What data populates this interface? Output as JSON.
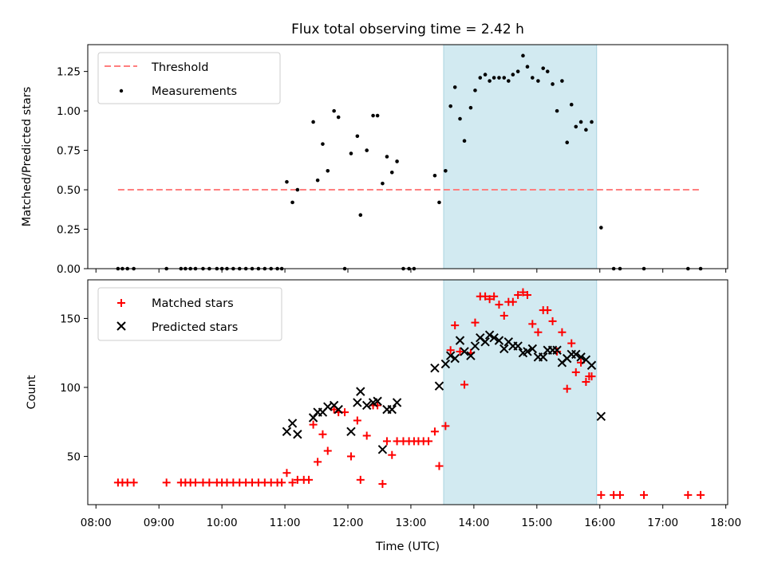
{
  "chart_data": [
    {
      "type": "scatter",
      "title": "Flux total observing time = 2.42 h",
      "xlabel": "",
      "ylabel": "Matched/Predicted stars",
      "xlim": [
        7.87,
        18.03
      ],
      "ylim": [
        0.0,
        1.42
      ],
      "yticks": [
        0.0,
        0.25,
        0.5,
        0.75,
        1.0,
        1.25
      ],
      "ytick_labels": [
        "0.00",
        "0.25",
        "0.50",
        "0.75",
        "1.00",
        "1.25"
      ],
      "shaded_x_range": [
        13.52,
        15.95
      ],
      "grid": false,
      "legend_position": "top-left",
      "threshold": {
        "name": "Threshold",
        "x": [
          8.35,
          17.6
        ],
        "y": 0.5,
        "color": "#ff7f7f"
      },
      "series": [
        {
          "name": "Measurements",
          "color": "#000000",
          "marker": "dot",
          "points": [
            [
              8.35,
              0
            ],
            [
              8.42,
              0
            ],
            [
              8.5,
              0
            ],
            [
              8.6,
              0
            ],
            [
              9.12,
              0
            ],
            [
              9.35,
              0
            ],
            [
              9.42,
              0
            ],
            [
              9.5,
              0
            ],
            [
              9.58,
              0
            ],
            [
              9.7,
              0
            ],
            [
              9.8,
              0
            ],
            [
              9.92,
              0
            ],
            [
              10.0,
              0
            ],
            [
              10.08,
              0
            ],
            [
              10.18,
              0
            ],
            [
              10.28,
              0
            ],
            [
              10.38,
              0
            ],
            [
              10.48,
              0
            ],
            [
              10.58,
              0
            ],
            [
              10.68,
              0
            ],
            [
              10.78,
              0
            ],
            [
              10.88,
              0
            ],
            [
              10.95,
              0
            ],
            [
              11.03,
              0.55
            ],
            [
              11.12,
              0.42
            ],
            [
              11.2,
              0.5
            ],
            [
              11.45,
              0.93
            ],
            [
              11.52,
              0.56
            ],
            [
              11.6,
              0.79
            ],
            [
              11.68,
              0.62
            ],
            [
              11.78,
              1.0
            ],
            [
              11.85,
              0.96
            ],
            [
              11.95,
              0
            ],
            [
              12.05,
              0.73
            ],
            [
              12.15,
              0.84
            ],
            [
              12.2,
              0.34
            ],
            [
              12.3,
              0.75
            ],
            [
              12.4,
              0.97
            ],
            [
              12.47,
              0.97
            ],
            [
              12.55,
              0.54
            ],
            [
              12.62,
              0.71
            ],
            [
              12.7,
              0.61
            ],
            [
              12.78,
              0.68
            ],
            [
              12.88,
              0
            ],
            [
              12.97,
              0
            ],
            [
              13.05,
              0
            ],
            [
              13.38,
              0.59
            ],
            [
              13.45,
              0.42
            ],
            [
              13.55,
              0.62
            ],
            [
              13.63,
              1.03
            ],
            [
              13.7,
              1.15
            ],
            [
              13.78,
              0.95
            ],
            [
              13.85,
              0.81
            ],
            [
              13.95,
              1.02
            ],
            [
              14.02,
              1.13
            ],
            [
              14.1,
              1.21
            ],
            [
              14.18,
              1.23
            ],
            [
              14.25,
              1.19
            ],
            [
              14.32,
              1.21
            ],
            [
              14.4,
              1.21
            ],
            [
              14.48,
              1.21
            ],
            [
              14.55,
              1.19
            ],
            [
              14.62,
              1.23
            ],
            [
              14.7,
              1.25
            ],
            [
              14.78,
              1.35
            ],
            [
              14.85,
              1.28
            ],
            [
              14.93,
              1.21
            ],
            [
              15.02,
              1.19
            ],
            [
              15.1,
              1.27
            ],
            [
              15.17,
              1.25
            ],
            [
              15.25,
              1.17
            ],
            [
              15.32,
              1.0
            ],
            [
              15.4,
              1.19
            ],
            [
              15.48,
              0.8
            ],
            [
              15.55,
              1.04
            ],
            [
              15.62,
              0.9
            ],
            [
              15.7,
              0.93
            ],
            [
              15.78,
              0.88
            ],
            [
              15.87,
              0.93
            ],
            [
              16.02,
              0.26
            ],
            [
              16.22,
              0
            ],
            [
              16.32,
              0
            ],
            [
              16.7,
              0
            ],
            [
              17.4,
              0
            ],
            [
              17.6,
              0
            ]
          ]
        }
      ]
    },
    {
      "type": "scatter",
      "title": "",
      "xlabel": "Time (UTC)",
      "ylabel": "Count",
      "xlim": [
        7.87,
        18.03
      ],
      "ylim": [
        15,
        178
      ],
      "xticks": [
        8,
        9,
        10,
        11,
        12,
        13,
        14,
        15,
        16,
        17,
        18
      ],
      "xtick_labels": [
        "08:00",
        "09:00",
        "10:00",
        "11:00",
        "12:00",
        "13:00",
        "14:00",
        "15:00",
        "16:00",
        "17:00",
        "18:00"
      ],
      "yticks": [
        50,
        100,
        150
      ],
      "ytick_labels": [
        "50",
        "100",
        "150"
      ],
      "shaded_x_range": [
        13.52,
        15.95
      ],
      "grid": false,
      "legend_position": "top-left",
      "series": [
        {
          "name": "Matched stars",
          "color": "#ff0000",
          "marker": "plus",
          "points": [
            [
              8.35,
              31
            ],
            [
              8.42,
              31
            ],
            [
              8.5,
              31
            ],
            [
              8.6,
              31
            ],
            [
              9.12,
              31
            ],
            [
              9.35,
              31
            ],
            [
              9.42,
              31
            ],
            [
              9.5,
              31
            ],
            [
              9.58,
              31
            ],
            [
              9.7,
              31
            ],
            [
              9.8,
              31
            ],
            [
              9.92,
              31
            ],
            [
              10.0,
              31
            ],
            [
              10.08,
              31
            ],
            [
              10.18,
              31
            ],
            [
              10.28,
              31
            ],
            [
              10.38,
              31
            ],
            [
              10.48,
              31
            ],
            [
              10.58,
              31
            ],
            [
              10.68,
              31
            ],
            [
              10.78,
              31
            ],
            [
              10.88,
              31
            ],
            [
              10.95,
              31
            ],
            [
              11.03,
              38
            ],
            [
              11.12,
              31
            ],
            [
              11.2,
              33
            ],
            [
              11.3,
              33
            ],
            [
              11.38,
              33
            ],
            [
              11.45,
              73
            ],
            [
              11.52,
              46
            ],
            [
              11.6,
              66
            ],
            [
              11.68,
              54
            ],
            [
              11.78,
              84
            ],
            [
              11.85,
              82
            ],
            [
              11.95,
              82
            ],
            [
              12.05,
              50
            ],
            [
              12.15,
              76
            ],
            [
              12.2,
              33
            ],
            [
              12.3,
              65
            ],
            [
              12.4,
              87
            ],
            [
              12.47,
              87
            ],
            [
              12.55,
              30
            ],
            [
              12.62,
              61
            ],
            [
              12.7,
              51
            ],
            [
              12.78,
              61
            ],
            [
              12.88,
              61
            ],
            [
              12.97,
              61
            ],
            [
              13.05,
              61
            ],
            [
              13.12,
              61
            ],
            [
              13.2,
              61
            ],
            [
              13.28,
              61
            ],
            [
              13.38,
              68
            ],
            [
              13.45,
              43
            ],
            [
              13.55,
              72
            ],
            [
              13.63,
              127
            ],
            [
              13.7,
              145
            ],
            [
              13.78,
              126
            ],
            [
              13.85,
              102
            ],
            [
              13.95,
              125
            ],
            [
              14.02,
              147
            ],
            [
              14.1,
              166
            ],
            [
              14.18,
              166
            ],
            [
              14.25,
              164
            ],
            [
              14.32,
              166
            ],
            [
              14.4,
              160
            ],
            [
              14.48,
              152
            ],
            [
              14.55,
              162
            ],
            [
              14.62,
              162
            ],
            [
              14.7,
              167
            ],
            [
              14.78,
              169
            ],
            [
              14.85,
              167
            ],
            [
              14.93,
              146
            ],
            [
              15.02,
              140
            ],
            [
              15.1,
              156
            ],
            [
              15.17,
              156
            ],
            [
              15.25,
              148
            ],
            [
              15.32,
              126
            ],
            [
              15.4,
              140
            ],
            [
              15.48,
              99
            ],
            [
              15.55,
              132
            ],
            [
              15.62,
              111
            ],
            [
              15.7,
              118
            ],
            [
              15.78,
              104
            ],
            [
              15.83,
              108
            ],
            [
              15.87,
              108
            ],
            [
              16.02,
              22
            ],
            [
              16.22,
              22
            ],
            [
              16.32,
              22
            ],
            [
              16.7,
              22
            ],
            [
              17.4,
              22
            ],
            [
              17.6,
              22
            ]
          ]
        },
        {
          "name": "Predicted stars",
          "color": "#000000",
          "marker": "x",
          "points": [
            [
              11.03,
              68
            ],
            [
              11.12,
              74
            ],
            [
              11.2,
              66
            ],
            [
              11.45,
              78
            ],
            [
              11.52,
              82
            ],
            [
              11.6,
              82
            ],
            [
              11.68,
              86
            ],
            [
              11.78,
              87
            ],
            [
              11.85,
              84
            ],
            [
              12.05,
              68
            ],
            [
              12.15,
              89
            ],
            [
              12.2,
              97
            ],
            [
              12.3,
              87
            ],
            [
              12.4,
              89
            ],
            [
              12.47,
              90
            ],
            [
              12.55,
              55
            ],
            [
              12.62,
              84
            ],
            [
              12.7,
              84
            ],
            [
              12.78,
              89
            ],
            [
              13.38,
              114
            ],
            [
              13.45,
              101
            ],
            [
              13.55,
              117
            ],
            [
              13.63,
              123
            ],
            [
              13.7,
              121
            ],
            [
              13.78,
              134
            ],
            [
              13.85,
              126
            ],
            [
              13.95,
              123
            ],
            [
              14.02,
              130
            ],
            [
              14.1,
              136
            ],
            [
              14.18,
              133
            ],
            [
              14.25,
              138
            ],
            [
              14.32,
              136
            ],
            [
              14.4,
              134
            ],
            [
              14.48,
              128
            ],
            [
              14.55,
              133
            ],
            [
              14.62,
              130
            ],
            [
              14.7,
              130
            ],
            [
              14.78,
              125
            ],
            [
              14.85,
              126
            ],
            [
              14.93,
              128
            ],
            [
              15.02,
              122
            ],
            [
              15.1,
              122
            ],
            [
              15.17,
              127
            ],
            [
              15.25,
              127
            ],
            [
              15.32,
              127
            ],
            [
              15.4,
              118
            ],
            [
              15.48,
              121
            ],
            [
              15.55,
              124
            ],
            [
              15.62,
              124
            ],
            [
              15.7,
              122
            ],
            [
              15.78,
              120
            ],
            [
              15.87,
              116
            ],
            [
              16.02,
              79
            ]
          ]
        }
      ]
    }
  ]
}
